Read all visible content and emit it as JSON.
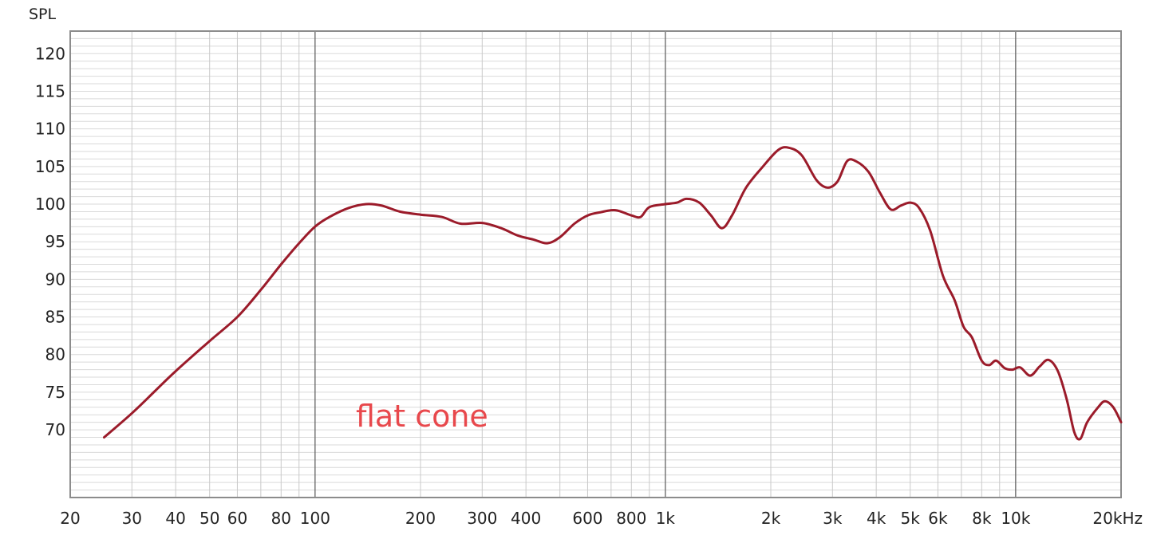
{
  "chart_data": {
    "type": "line",
    "title": "",
    "ylabel": "SPL",
    "xlabel": "",
    "x_scale": "log",
    "xlim": [
      20,
      20000
    ],
    "ylim": [
      61,
      123
    ],
    "grid": true,
    "annotation": "flat cone",
    "x_ticks": [
      {
        "value": 20,
        "label": "20"
      },
      {
        "value": 30,
        "label": "30"
      },
      {
        "value": 40,
        "label": "40"
      },
      {
        "value": 50,
        "label": "50"
      },
      {
        "value": 60,
        "label": "60"
      },
      {
        "value": 80,
        "label": "80"
      },
      {
        "value": 100,
        "label": "100"
      },
      {
        "value": 200,
        "label": "200"
      },
      {
        "value": 300,
        "label": "300"
      },
      {
        "value": 400,
        "label": "400"
      },
      {
        "value": 600,
        "label": "600"
      },
      {
        "value": 800,
        "label": "800"
      },
      {
        "value": 1000,
        "label": "1k"
      },
      {
        "value": 2000,
        "label": "2k"
      },
      {
        "value": 3000,
        "label": "3k"
      },
      {
        "value": 4000,
        "label": "4k"
      },
      {
        "value": 5000,
        "label": "5k"
      },
      {
        "value": 6000,
        "label": "6k"
      },
      {
        "value": 8000,
        "label": "8k"
      },
      {
        "value": 10000,
        "label": "10k"
      },
      {
        "value": 20000,
        "label": "20kHz"
      }
    ],
    "y_ticks": [
      {
        "value": 70,
        "label": "70"
      },
      {
        "value": 75,
        "label": "75"
      },
      {
        "value": 80,
        "label": "80"
      },
      {
        "value": 85,
        "label": "85"
      },
      {
        "value": 90,
        "label": "90"
      },
      {
        "value": 95,
        "label": "95"
      },
      {
        "value": 100,
        "label": "100"
      },
      {
        "value": 105,
        "label": "105"
      },
      {
        "value": 110,
        "label": "110"
      },
      {
        "value": 115,
        "label": "115"
      },
      {
        "value": 120,
        "label": "120"
      }
    ],
    "series": [
      {
        "color": "#9b1b2a",
        "points": [
          [
            25,
            69.0
          ],
          [
            30,
            72.2
          ],
          [
            35,
            75.2
          ],
          [
            40,
            77.8
          ],
          [
            50,
            81.8
          ],
          [
            60,
            85.0
          ],
          [
            70,
            88.6
          ],
          [
            80,
            92.0
          ],
          [
            90,
            94.8
          ],
          [
            100,
            97.0
          ],
          [
            110,
            98.3
          ],
          [
            125,
            99.5
          ],
          [
            140,
            100.0
          ],
          [
            155,
            99.8
          ],
          [
            175,
            99.0
          ],
          [
            200,
            98.6
          ],
          [
            230,
            98.3
          ],
          [
            260,
            97.4
          ],
          [
            300,
            97.5
          ],
          [
            340,
            96.8
          ],
          [
            380,
            95.8
          ],
          [
            420,
            95.3
          ],
          [
            460,
            94.8
          ],
          [
            500,
            95.6
          ],
          [
            550,
            97.4
          ],
          [
            600,
            98.5
          ],
          [
            650,
            98.9
          ],
          [
            720,
            99.2
          ],
          [
            800,
            98.5
          ],
          [
            850,
            98.3
          ],
          [
            900,
            99.6
          ],
          [
            1000,
            100.0
          ],
          [
            1080,
            100.2
          ],
          [
            1150,
            100.7
          ],
          [
            1250,
            100.2
          ],
          [
            1350,
            98.5
          ],
          [
            1450,
            96.8
          ],
          [
            1550,
            98.5
          ],
          [
            1700,
            102.2
          ],
          [
            1900,
            105.0
          ],
          [
            2100,
            107.2
          ],
          [
            2250,
            107.5
          ],
          [
            2450,
            106.5
          ],
          [
            2700,
            103.2
          ],
          [
            2900,
            102.2
          ],
          [
            3100,
            103.0
          ],
          [
            3300,
            105.7
          ],
          [
            3500,
            105.7
          ],
          [
            3800,
            104.3
          ],
          [
            4100,
            101.5
          ],
          [
            4400,
            99.3
          ],
          [
            4700,
            99.8
          ],
          [
            5000,
            100.2
          ],
          [
            5300,
            99.5
          ],
          [
            5700,
            96.5
          ],
          [
            6200,
            90.5
          ],
          [
            6700,
            87.2
          ],
          [
            7100,
            83.7
          ],
          [
            7500,
            82.3
          ],
          [
            8000,
            79.2
          ],
          [
            8400,
            78.6
          ],
          [
            8800,
            79.2
          ],
          [
            9300,
            78.2
          ],
          [
            9800,
            78.0
          ],
          [
            10300,
            78.3
          ],
          [
            11000,
            77.2
          ],
          [
            11700,
            78.4
          ],
          [
            12400,
            79.3
          ],
          [
            13200,
            77.8
          ],
          [
            14000,
            74.0
          ],
          [
            14700,
            69.7
          ],
          [
            15300,
            68.8
          ],
          [
            16000,
            71.0
          ],
          [
            17200,
            73.0
          ],
          [
            18000,
            73.8
          ],
          [
            19000,
            73.0
          ],
          [
            20000,
            71.0
          ]
        ]
      }
    ]
  }
}
